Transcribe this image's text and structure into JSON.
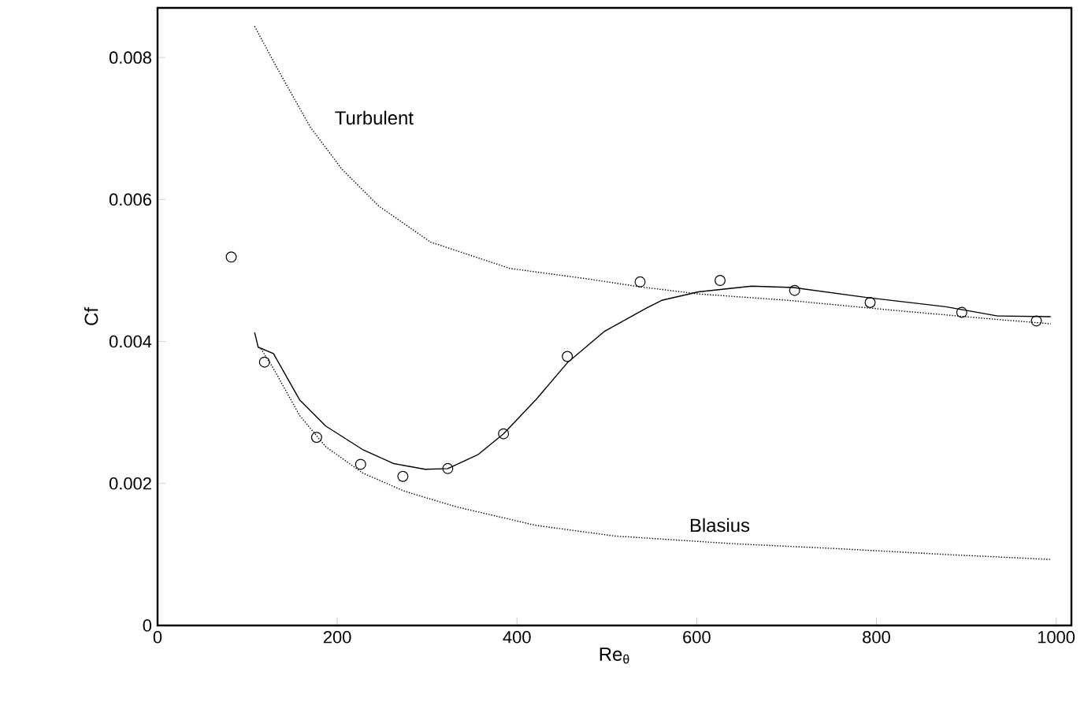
{
  "chart_data": {
    "type": "line",
    "xlabel": "Re$_{θ}$",
    "ylabel": "Cf",
    "xlim": [
      0,
      1017
    ],
    "ylim": [
      0,
      0.0087
    ],
    "xticks": [
      0,
      200,
      400,
      600,
      800,
      1000
    ],
    "yticks": [
      0,
      0.002,
      0.004,
      0.006,
      0.008
    ],
    "series": [
      {
        "type": "scatter",
        "marker": "circle",
        "color": "#000000",
        "x": [
          82,
          119,
          177,
          226,
          273,
          323,
          385,
          456,
          537,
          626,
          709,
          793,
          895,
          978
        ],
        "values": [
          0.00519,
          0.00371,
          0.00265,
          0.00227,
          0.0021,
          0.00221,
          0.0027,
          0.00379,
          0.00484,
          0.00486,
          0.00472,
          0.00455,
          0.00441,
          0.00429
        ]
      },
      {
        "line_style": "solid",
        "color": "#000000",
        "x": [
          108,
          112,
          129,
          158,
          187,
          228,
          263,
          298,
          323,
          357,
          385,
          421,
          456,
          497,
          544,
          561,
          602,
          661,
          708,
          789,
          877,
          935,
          994
        ],
        "values": [
          0.00413,
          0.00392,
          0.00383,
          0.00318,
          0.00281,
          0.00248,
          0.00228,
          0.0022,
          0.00221,
          0.00241,
          0.0027,
          0.00318,
          0.0037,
          0.00414,
          0.00447,
          0.00458,
          0.0047,
          0.00478,
          0.00476,
          0.00462,
          0.00449,
          0.00436,
          0.00435
        ]
      },
      {
        "name": "Turbulent",
        "line_style": "dotted",
        "color": "#000000",
        "x": [
          108,
          134,
          170,
          205,
          246,
          304,
          392,
          480,
          537,
          602,
          702,
          819,
          935,
          994
        ],
        "values": [
          0.00844,
          0.00783,
          0.00702,
          0.00643,
          0.00591,
          0.0054,
          0.00503,
          0.00488,
          0.00477,
          0.00467,
          0.00458,
          0.00444,
          0.00431,
          0.00425
        ]
      },
      {
        "name": "Blasius",
        "line_style": "dotted",
        "color": "#000000",
        "x": [
          115,
          129,
          158,
          187,
          228,
          275,
          333,
          421,
          509,
          643,
          760,
          877,
          994
        ],
        "values": [
          0.0039,
          0.00362,
          0.00296,
          0.00252,
          0.00215,
          0.00189,
          0.00167,
          0.00141,
          0.00126,
          0.00115,
          0.00108,
          0.001,
          0.00093
        ]
      }
    ]
  }
}
